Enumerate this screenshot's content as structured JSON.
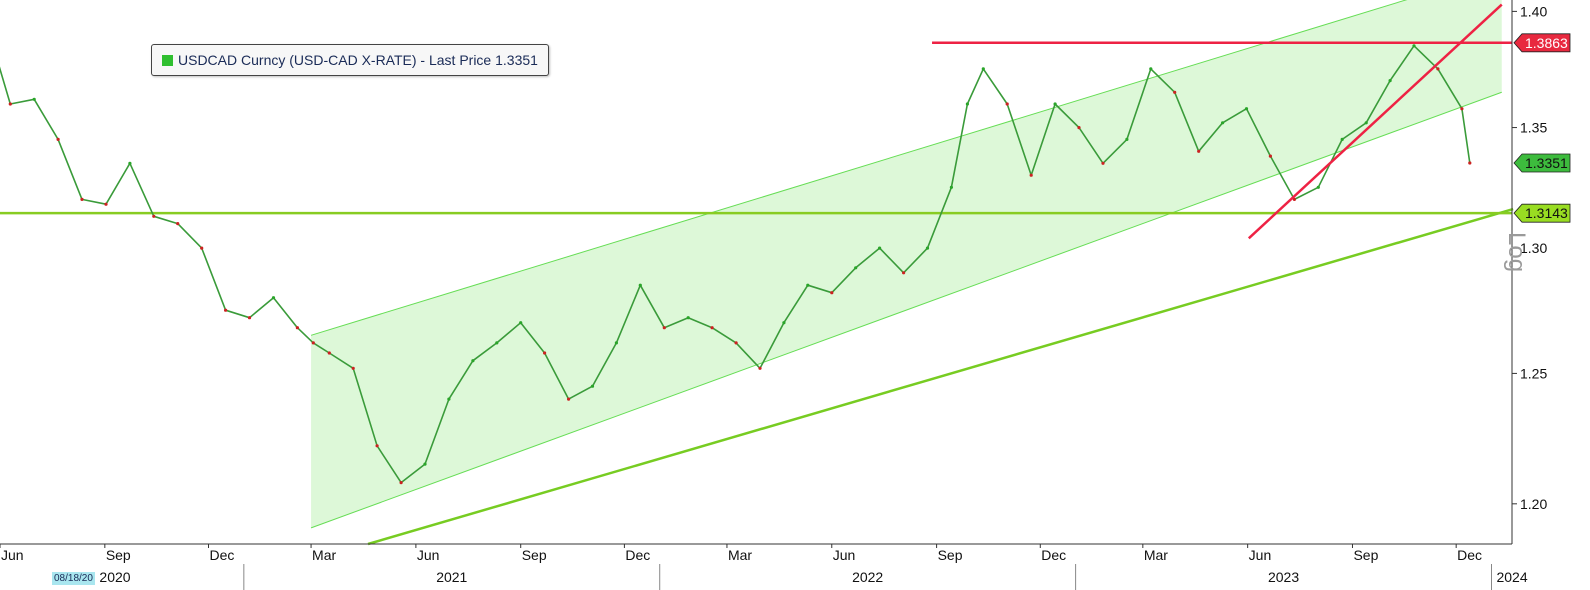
{
  "legend": {
    "text": "USDCAD Curncy (USD-CAD X-RATE) - Last Price 1.3351",
    "swatch_color": "#2fbf2f"
  },
  "date_stamp": "08/18/20",
  "log_label": "Log",
  "chart_data": {
    "type": "line",
    "series": [
      {
        "name": "USDCAD Curncy (USD-CAD X-RATE) - Last Price",
        "color": "#3a9b3a",
        "x": [
          "2020-05-20",
          "2020-06-10",
          "2020-07-01",
          "2020-07-22",
          "2020-08-12",
          "2020-09-02",
          "2020-09-23",
          "2020-10-14",
          "2020-11-04",
          "2020-11-25",
          "2020-12-16",
          "2021-01-06",
          "2021-01-27",
          "2021-02-17",
          "2021-03-03",
          "2021-03-17",
          "2021-04-07",
          "2021-04-28",
          "2021-05-19",
          "2021-06-09",
          "2021-06-30",
          "2021-07-21",
          "2021-08-11",
          "2021-09-01",
          "2021-09-22",
          "2021-10-13",
          "2021-11-03",
          "2021-11-24",
          "2021-12-15",
          "2022-01-05",
          "2022-01-26",
          "2022-02-16",
          "2022-03-09",
          "2022-03-30",
          "2022-04-20",
          "2022-05-11",
          "2022-06-01",
          "2022-06-22",
          "2022-07-13",
          "2022-08-03",
          "2022-08-24",
          "2022-09-14",
          "2022-09-28",
          "2022-10-12",
          "2022-11-02",
          "2022-11-23",
          "2022-12-14",
          "2023-01-04",
          "2023-01-25",
          "2023-02-15",
          "2023-03-08",
          "2023-03-29",
          "2023-04-19",
          "2023-05-10",
          "2023-05-31",
          "2023-06-21",
          "2023-07-12",
          "2023-08-02",
          "2023-08-23",
          "2023-09-13",
          "2023-10-04",
          "2023-10-25",
          "2023-11-15",
          "2023-12-06",
          "2023-12-13"
        ],
        "values": [
          1.395,
          1.36,
          1.362,
          1.345,
          1.32,
          1.318,
          1.335,
          1.313,
          1.31,
          1.3,
          1.275,
          1.272,
          1.28,
          1.268,
          1.262,
          1.258,
          1.252,
          1.222,
          1.208,
          1.215,
          1.24,
          1.255,
          1.262,
          1.27,
          1.258,
          1.24,
          1.245,
          1.262,
          1.285,
          1.268,
          1.272,
          1.268,
          1.262,
          1.252,
          1.27,
          1.285,
          1.282,
          1.292,
          1.3,
          1.29,
          1.3,
          1.325,
          1.36,
          1.375,
          1.36,
          1.33,
          1.36,
          1.35,
          1.335,
          1.345,
          1.375,
          1.365,
          1.34,
          1.352,
          1.358,
          1.338,
          1.32,
          1.325,
          1.345,
          1.352,
          1.37,
          1.385,
          1.375,
          1.358,
          1.3351
        ]
      }
    ],
    "channel": {
      "fill_color": "#ddf8d8",
      "line_color": "#66dd55",
      "start_date": "2021-03-01",
      "upper_start": 1.265,
      "lower_start": 1.191,
      "end_date": "2024-01-10",
      "upper_end": 1.418,
      "lower_end": 1.365
    },
    "support_trendline": {
      "color": "#77cc22",
      "start_date": "2021-04-20",
      "start_value": 1.185,
      "end_date": "2024-01-20",
      "end_value": 1.316
    },
    "rising_trendline": {
      "color": "#ee2244",
      "start_date": "2023-06-02",
      "start_value": 1.304,
      "end_date": "2024-01-10",
      "end_value": 1.403
    },
    "resistance_line": {
      "value": 1.3863,
      "color": "#ee2244",
      "start_date": "2022-08-28",
      "label": "1.3863"
    },
    "support_line": {
      "value": 1.3143,
      "color": "#88cc22",
      "label": "1.3143"
    },
    "last_price": {
      "value": 1.3351,
      "label": "1.3351",
      "color": "#3dbb3d"
    },
    "y_axis": {
      "scale": "log",
      "ylim": [
        1.185,
        1.405
      ],
      "ticks": [
        {
          "value": 1.2,
          "label": "1.20"
        },
        {
          "value": 1.25,
          "label": "1.25"
        },
        {
          "value": 1.3,
          "label": "1.30"
        },
        {
          "value": 1.35,
          "label": "1.35"
        },
        {
          "value": 1.4,
          "label": "1.40"
        }
      ]
    },
    "x_axis": {
      "xlim": [
        "2020-06-01",
        "2024-01-19"
      ],
      "months": [
        {
          "date": "2020-06-01",
          "label": "Jun"
        },
        {
          "date": "2020-09-01",
          "label": "Sep"
        },
        {
          "date": "2020-12-01",
          "label": "Dec"
        },
        {
          "date": "2021-03-01",
          "label": "Mar"
        },
        {
          "date": "2021-06-01",
          "label": "Jun"
        },
        {
          "date": "2021-09-01",
          "label": "Sep"
        },
        {
          "date": "2021-12-01",
          "label": "Dec"
        },
        {
          "date": "2022-03-01",
          "label": "Mar"
        },
        {
          "date": "2022-06-01",
          "label": "Jun"
        },
        {
          "date": "2022-09-01",
          "label": "Sep"
        },
        {
          "date": "2022-12-01",
          "label": "Dec"
        },
        {
          "date": "2023-03-01",
          "label": "Mar"
        },
        {
          "date": "2023-06-01",
          "label": "Jun"
        },
        {
          "date": "2023-09-01",
          "label": "Sep"
        },
        {
          "date": "2023-12-01",
          "label": "Dec"
        }
      ],
      "years": [
        {
          "label": "2020",
          "start": "2020-06-01",
          "end": "2021-01-01"
        },
        {
          "label": "2021",
          "start": "2021-01-01",
          "end": "2022-01-01"
        },
        {
          "label": "2022",
          "start": "2022-01-01",
          "end": "2023-01-01"
        },
        {
          "label": "2023",
          "start": "2023-01-01",
          "end": "2024-01-01"
        },
        {
          "label": "2024",
          "start": "2024-01-01",
          "end": "2024-01-19"
        }
      ]
    },
    "grid": false
  }
}
